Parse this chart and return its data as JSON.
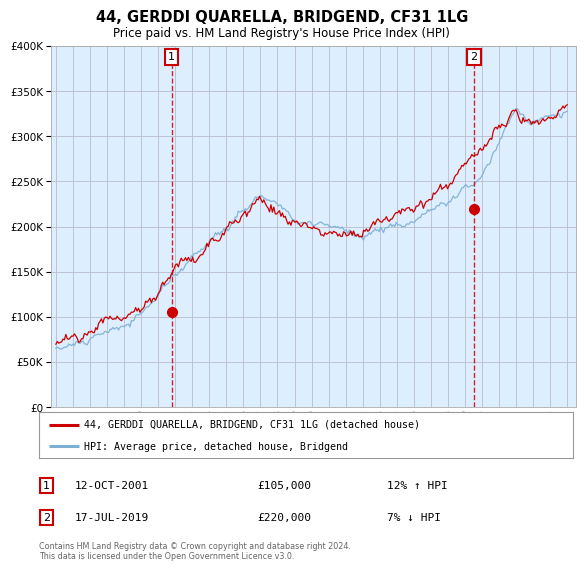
{
  "title": "44, GERDDI QUARELLA, BRIDGEND, CF31 1LG",
  "subtitle": "Price paid vs. HM Land Registry's House Price Index (HPI)",
  "legend_line1": "44, GERDDI QUARELLA, BRIDGEND, CF31 1LG (detached house)",
  "legend_line2": "HPI: Average price, detached house, Bridgend",
  "sale1_date": "12-OCT-2001",
  "sale1_price": "£105,000",
  "sale1_hpi": "12% ↑ HPI",
  "sale1_year": 2001.79,
  "sale1_value": 105000,
  "sale2_date": "17-JUL-2019",
  "sale2_price": "£220,000",
  "sale2_hpi": "7% ↓ HPI",
  "sale2_year": 2019.54,
  "sale2_value": 220000,
  "copyright": "Contains HM Land Registry data © Crown copyright and database right 2024.\nThis data is licensed under the Open Government Licence v3.0.",
  "hpi_color": "#7bafd4",
  "price_color": "#cc0000",
  "vline_color": "#cc0000",
  "chart_bg": "#ddeeff",
  "background_color": "#ffffff",
  "grid_color": "#bbbbcc",
  "ylim": [
    0,
    400000
  ],
  "xlim": [
    1994.7,
    2025.5
  ],
  "yticks": [
    0,
    50000,
    100000,
    150000,
    200000,
    250000,
    300000,
    350000,
    400000
  ],
  "xticks": [
    1995,
    1996,
    1997,
    1998,
    1999,
    2000,
    2001,
    2002,
    2003,
    2004,
    2005,
    2006,
    2007,
    2008,
    2009,
    2010,
    2011,
    2012,
    2013,
    2014,
    2015,
    2016,
    2017,
    2018,
    2019,
    2020,
    2021,
    2022,
    2023,
    2024,
    2025
  ]
}
